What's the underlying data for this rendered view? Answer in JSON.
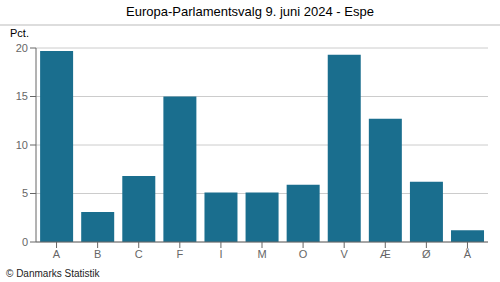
{
  "chart_data": {
    "type": "bar",
    "title": "Europa-Parlamentsvalg 9. juni 2024 - Espe",
    "ylabel": "Pct.",
    "annotations": [
      "© Danmarks Statistik"
    ],
    "categories": [
      "A",
      "B",
      "C",
      "F",
      "I",
      "M",
      "O",
      "V",
      "Æ",
      "Ø",
      "Å"
    ],
    "values": [
      19.7,
      3.1,
      6.8,
      15.0,
      5.1,
      5.1,
      5.9,
      19.3,
      12.7,
      6.2,
      1.2
    ],
    "color": "#1a6e8e",
    "ylim": [
      0,
      20
    ],
    "yticks": [
      0,
      5,
      10,
      15,
      20
    ],
    "grid": true
  }
}
